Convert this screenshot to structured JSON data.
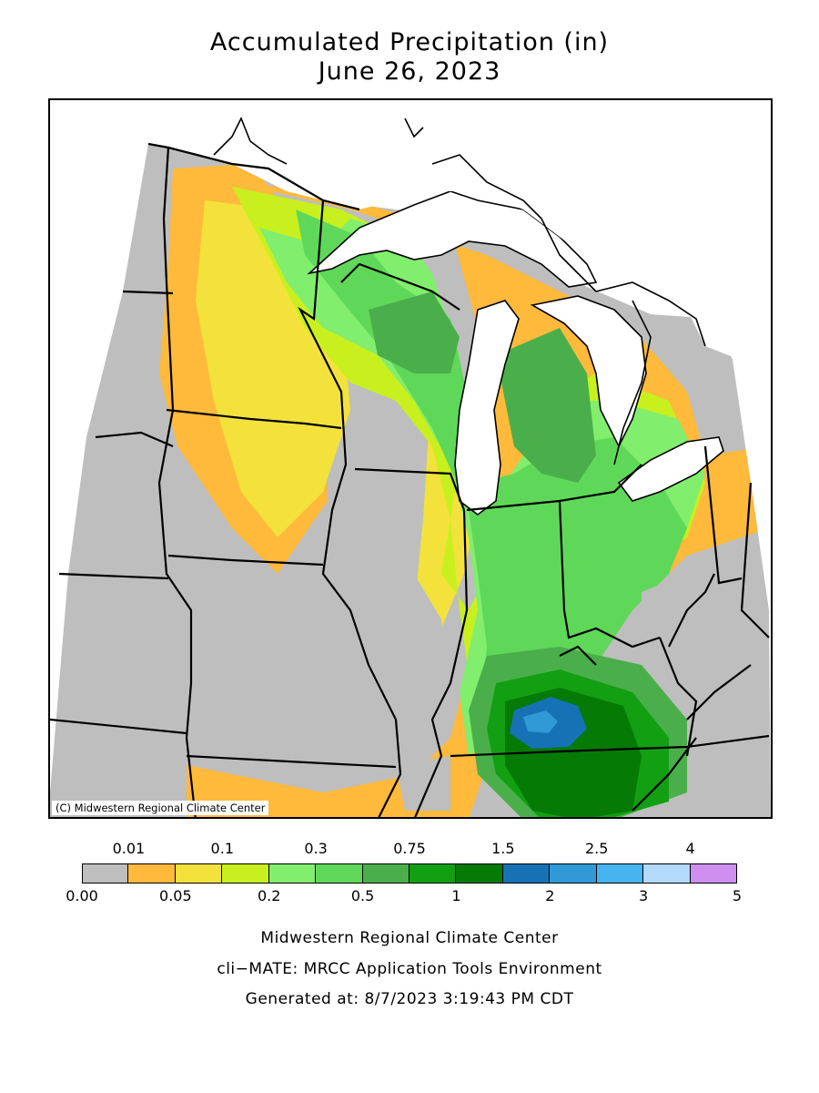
{
  "title": {
    "line1": "Accumulated Precipitation (in)",
    "line2": "June 26, 2023"
  },
  "map": {
    "copyright": "(C) Midwestern Regional Climate Center",
    "colors": {
      "no_data_gray": "#bebebe",
      "light_blue_background": "#ffffff",
      "lakes": "#ffffff",
      "boundaries": "#000000"
    }
  },
  "legend": {
    "top_labels": [
      "0.01",
      "0.1",
      "0.3",
      "0.75",
      "1.5",
      "2.5",
      "4"
    ],
    "bottom_labels": [
      "0.00",
      "0.05",
      "0.2",
      "0.5",
      "1",
      "2",
      "3",
      "5"
    ],
    "colors": [
      "#bebebe",
      "#ffb93b",
      "#f3e23b",
      "#c8f01e",
      "#82ee6e",
      "#5fd85a",
      "#4aaf4a",
      "#129f12",
      "#057a05",
      "#1672b4",
      "#2f9ad6",
      "#46b4ef",
      "#b3dafb",
      "#cf8ff0"
    ]
  },
  "credits": {
    "line1": "Midwestern Regional Climate Center",
    "line2": "cli−MATE: MRCC Application Tools Environment",
    "line3": "Generated at: 8/7/2023 3:19:43 PM CDT"
  }
}
